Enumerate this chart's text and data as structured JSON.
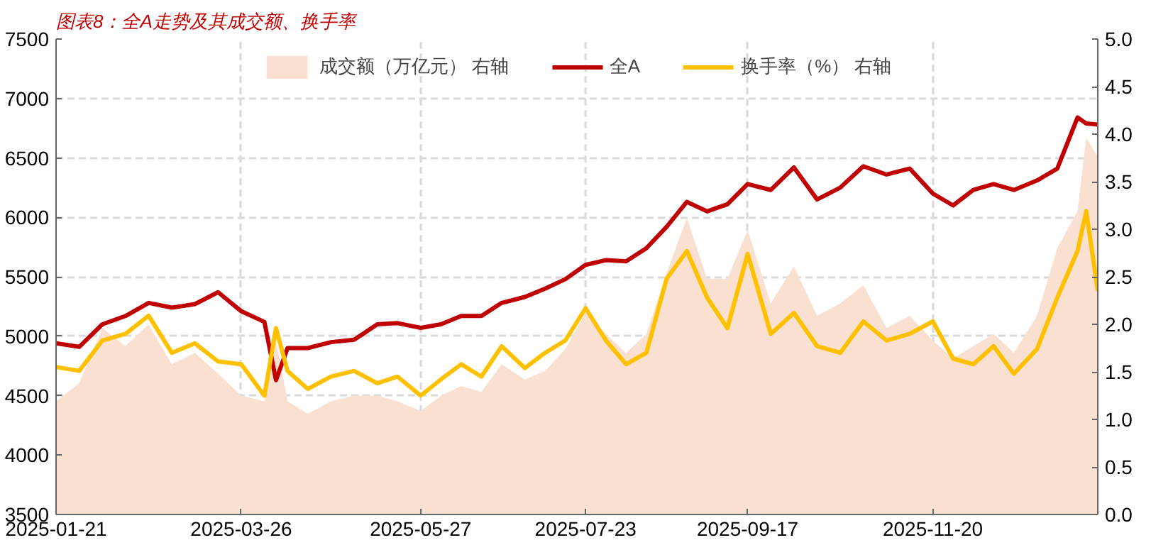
{
  "chart_data": {
    "type": "line",
    "title": "图表8：全A走势及其成交额、换手率",
    "x": [
      "2025-01-21",
      "2025-01-29",
      "2025-02-06",
      "2025-02-14",
      "2025-02-22",
      "2025-03-02",
      "2025-03-10",
      "2025-03-18",
      "2025-03-26",
      "2025-04-03",
      "2025-04-07",
      "2025-04-11",
      "2025-04-18",
      "2025-04-26",
      "2025-05-04",
      "2025-05-12",
      "2025-05-19",
      "2025-05-27",
      "2025-06-03",
      "2025-06-10",
      "2025-06-17",
      "2025-06-24",
      "2025-07-02",
      "2025-07-09",
      "2025-07-16",
      "2025-07-23",
      "2025-07-30",
      "2025-08-06",
      "2025-08-13",
      "2025-08-20",
      "2025-08-27",
      "2025-09-03",
      "2025-09-10",
      "2025-09-17",
      "2025-09-25",
      "2025-10-03",
      "2025-10-11",
      "2025-10-19",
      "2025-10-27",
      "2025-11-04",
      "2025-11-12",
      "2025-11-20",
      "2025-11-27",
      "2025-12-04",
      "2025-12-11",
      "2025-12-18",
      "2025-12-26",
      "2026-01-02",
      "2026-01-09",
      "2026-01-12",
      "2026-01-16"
    ],
    "xlim": [
      "2025-01-21",
      "2026-01-16"
    ],
    "xticks": [
      "2025-01-21",
      "2025-03-26",
      "2025-05-27",
      "2025-07-23",
      "2025-09-17",
      "2025-11-20"
    ],
    "ylim": [
      3500,
      7500
    ],
    "yticks": [
      3500,
      4000,
      4500,
      5000,
      5500,
      6000,
      6500,
      7000,
      7500
    ],
    "y2lim": [
      0,
      5
    ],
    "y2ticks": [
      {
        "value": 0,
        "label": "0.0"
      },
      0.5,
      {
        "value": 1,
        "label": "1.0"
      },
      1.5,
      {
        "value": 2,
        "label": "2.0"
      },
      2.5,
      {
        "value": 3,
        "label": "3.0"
      },
      3.5,
      {
        "value": 4,
        "label": "4.0"
      },
      4.5,
      {
        "value": 5,
        "label": "5.0"
      }
    ],
    "grid": true,
    "legend": "top",
    "series": [
      {
        "name": "成交额（万亿元） 右轴",
        "type": "area",
        "axis": "y2",
        "color": "#f9e0d1",
        "values": [
          1.19,
          1.38,
          1.96,
          1.77,
          2.0,
          1.58,
          1.7,
          1.48,
          1.25,
          1.19,
          1.83,
          1.19,
          1.06,
          1.19,
          1.25,
          1.25,
          1.19,
          1.09,
          1.25,
          1.35,
          1.29,
          1.58,
          1.42,
          1.51,
          1.74,
          2.12,
          1.9,
          1.7,
          1.9,
          2.54,
          3.12,
          2.48,
          2.48,
          2.99,
          2.22,
          2.61,
          2.09,
          2.22,
          2.41,
          1.96,
          2.09,
          1.83,
          1.64,
          1.77,
          1.9,
          1.7,
          2.09,
          2.8,
          3.19,
          3.96,
          3.76
        ]
      },
      {
        "name": "全A",
        "color": "#c00000",
        "values": [
          4940,
          4910,
          5100,
          5170,
          5280,
          5240,
          5270,
          5370,
          5210,
          5120,
          4630,
          4900,
          4900,
          4950,
          4970,
          5100,
          5110,
          5070,
          5100,
          5170,
          5170,
          5280,
          5330,
          5400,
          5480,
          5600,
          5640,
          5630,
          5740,
          5920,
          6130,
          6050,
          6110,
          6280,
          6230,
          6420,
          6150,
          6250,
          6430,
          6360,
          6410,
          6200,
          6100,
          6230,
          6280,
          6230,
          6310,
          6410,
          6840,
          6790,
          6780
        ]
      },
      {
        "name": "换手率（%） 右轴",
        "type": "line",
        "axis": "y2",
        "color": "#ffc000",
        "values": [
          1.55,
          1.51,
          1.83,
          1.9,
          2.09,
          1.7,
          1.8,
          1.61,
          1.58,
          1.25,
          1.96,
          1.51,
          1.32,
          1.45,
          1.51,
          1.38,
          1.45,
          1.25,
          1.42,
          1.58,
          1.45,
          1.77,
          1.54,
          1.7,
          1.83,
          2.17,
          1.83,
          1.58,
          1.7,
          2.48,
          2.77,
          2.28,
          1.96,
          2.74,
          1.9,
          2.12,
          1.77,
          1.7,
          2.03,
          1.83,
          1.9,
          2.03,
          1.64,
          1.58,
          1.77,
          1.48,
          1.74,
          2.28,
          2.77,
          3.19,
          2.35
        ]
      }
    ]
  }
}
